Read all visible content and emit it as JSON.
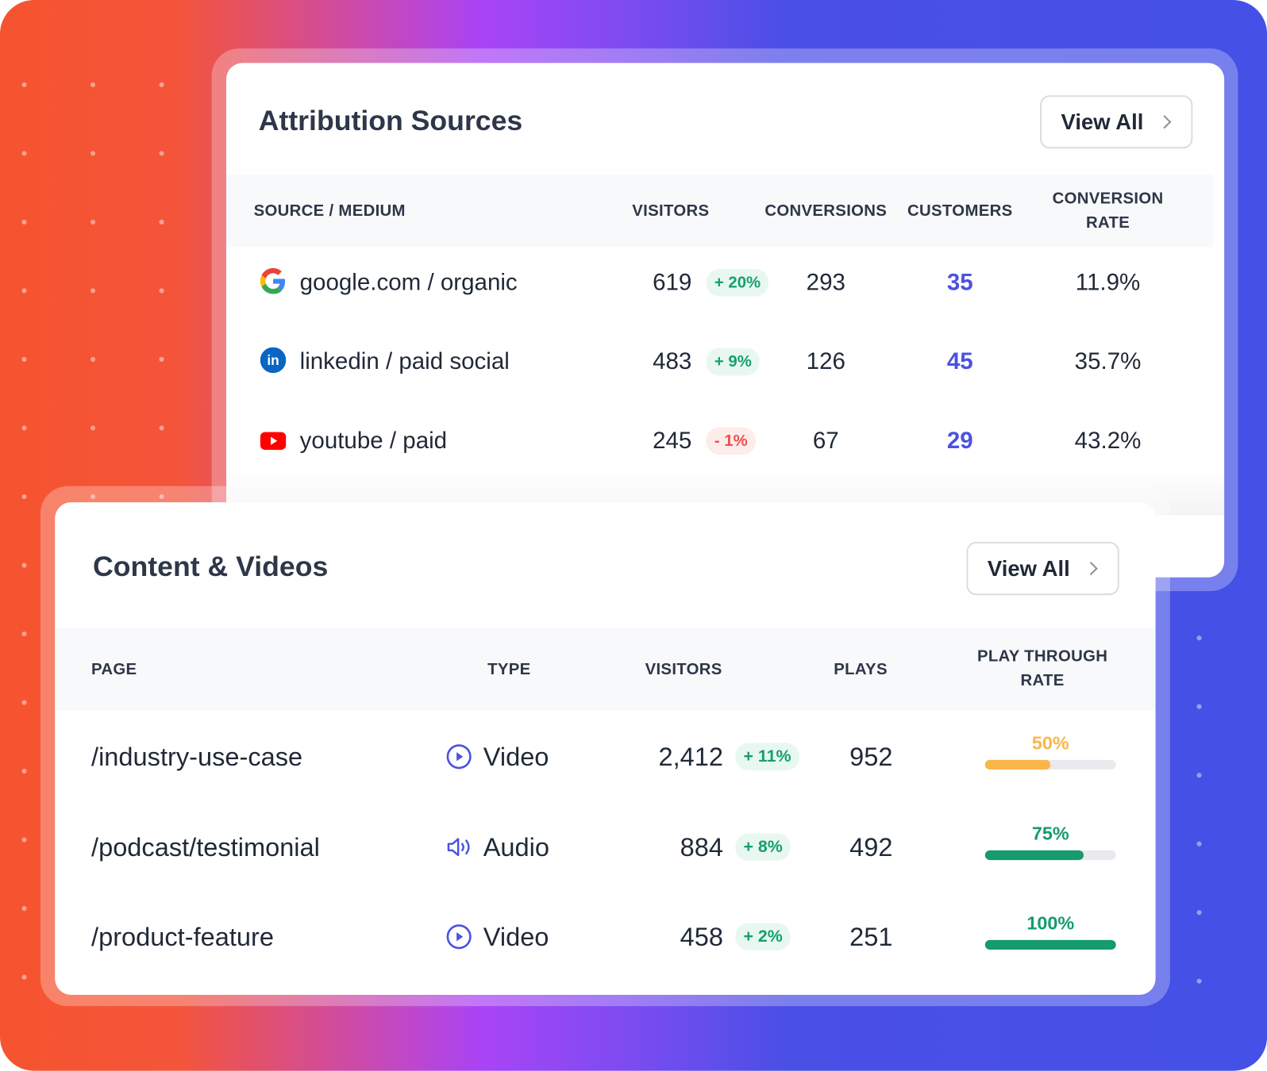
{
  "colors": {
    "accent": "#4b52e0",
    "positive": "#16a06b",
    "negative": "#ef4e4e",
    "bar_mid": "#fbb64a",
    "bar_high": "#159b6e"
  },
  "attribution": {
    "title": "Attribution Sources",
    "view_all": "View All",
    "columns": [
      "SOURCE / MEDIUM",
      "VISITORS",
      "CONVERSIONS",
      "CUSTOMERS",
      "CONVERSION",
      "RATE"
    ],
    "rows": [
      {
        "icon": "google-icon",
        "source": "google.com / organic",
        "visitors": "619",
        "change": "+ 20%",
        "trend": "pos",
        "conversions": "293",
        "customers": "35",
        "rate": "11.9%"
      },
      {
        "icon": "linkedin-icon",
        "source": "linkedin / paid social",
        "visitors": "483",
        "change": "+ 9%",
        "trend": "pos",
        "conversions": "126",
        "customers": "45",
        "rate": "35.7%"
      },
      {
        "icon": "youtube-icon",
        "source": "youtube / paid",
        "visitors": "245",
        "change": "- 1%",
        "trend": "neg",
        "conversions": "67",
        "customers": "29",
        "rate": "43.2%"
      }
    ]
  },
  "content": {
    "title": "Content & Videos",
    "view_all": "View All",
    "columns": [
      "PAGE",
      "TYPE",
      "VISITORS",
      "PLAYS",
      "PLAY THROUGH",
      "RATE"
    ],
    "rows": [
      {
        "page": "/industry-use-case",
        "type_icon": "play-circle-icon",
        "type": "Video",
        "visitors": "2,412",
        "change": "+ 11%",
        "plays": "952",
        "rate": "50%",
        "rate_value": 50
      },
      {
        "page": "/podcast/testimonial",
        "type_icon": "speaker-icon",
        "type": "Audio",
        "visitors": "884",
        "change": "+ 8%",
        "plays": "492",
        "rate": "75%",
        "rate_value": 75
      },
      {
        "page": "/product-feature",
        "type_icon": "play-circle-icon",
        "type": "Video",
        "visitors": "458",
        "change": "+ 2%",
        "plays": "251",
        "rate": "100%",
        "rate_value": 100
      }
    ]
  }
}
